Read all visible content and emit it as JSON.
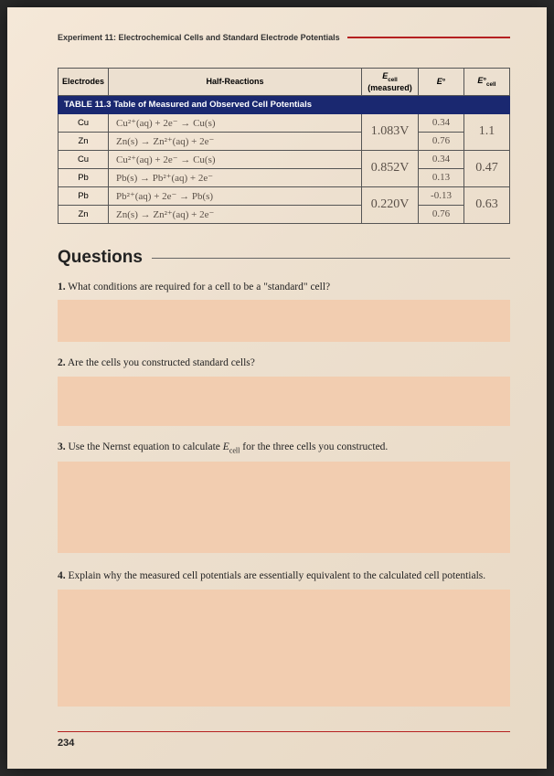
{
  "header": {
    "experiment_label": "Experiment 11: Electrochemical Cells and Standard Electrode Potentials"
  },
  "table": {
    "title": "TABLE 11.3  Table of Measured and Observed Cell Potentials",
    "columns": {
      "electrodes": "Electrodes",
      "half_reactions": "Half-Reactions",
      "e_cell_measured": "E_cell (measured)",
      "e_standard": "E°",
      "e_cell_calc": "E°_cell"
    },
    "rows": [
      {
        "electrode": "Cu",
        "half": "Cu²⁺(aq) + 2e⁻ → Cu(s)",
        "ecell": "",
        "e0": "0.34",
        "ecalc": ""
      },
      {
        "electrode": "Zn",
        "half": "Zn(s) → Zn²⁺(aq) + 2e⁻",
        "ecell": "1.083V",
        "e0": "0.76",
        "ecalc": "1.1"
      },
      {
        "electrode": "Cu",
        "half": "Cu²⁺(aq) + 2e⁻ → Cu(s)",
        "ecell": "",
        "e0": "0.34",
        "ecalc": ""
      },
      {
        "electrode": "Pb",
        "half": "Pb(s) → Pb²⁺(aq) + 2e⁻",
        "ecell": "0.852V",
        "e0": "0.13",
        "ecalc": "0.47"
      },
      {
        "electrode": "Pb",
        "half": "Pb²⁺(aq) + 2e⁻ → Pb(s)",
        "ecell": "",
        "e0": "-0.13",
        "ecalc": ""
      },
      {
        "electrode": "Zn",
        "half": "Zn(s) → Zn²⁺(aq) + 2e⁻",
        "ecell": "0.220V",
        "e0": "0.76",
        "ecalc": "0.63"
      }
    ]
  },
  "questions": {
    "heading": "Questions",
    "items": [
      {
        "num": "1.",
        "text": "What conditions are required for a cell to be a \"standard\" cell?",
        "box": "ab-small"
      },
      {
        "num": "2.",
        "text": "Are the cells you constructed standard cells?",
        "box": "ab-med"
      },
      {
        "num": "3.",
        "text": "Use the Nernst equation to calculate E_cell for the three cells you constructed.",
        "box": "ab-large"
      },
      {
        "num": "4.",
        "text": "Explain why the measured cell potentials are essentially equivalent to the calculated cell potentials.",
        "box": "ab-xl"
      }
    ]
  },
  "page_number": "234",
  "colors": {
    "accent_red": "#b52020",
    "table_header_bg": "#1a2870",
    "answer_box_bg": "#f2cdb0",
    "page_bg_start": "#f5e8d8",
    "page_bg_end": "#e8d9c5",
    "handwriting": "#5a5048"
  }
}
